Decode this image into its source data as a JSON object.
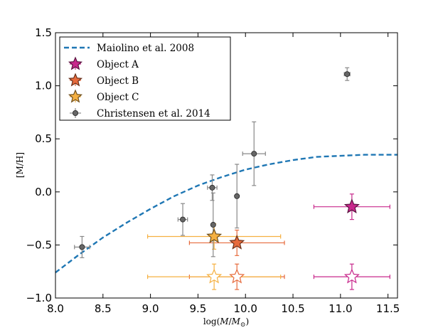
{
  "chart_data": {
    "type": "scatter",
    "xlabel": "log(M/M⊙)",
    "ylabel": "[M/H]",
    "xlim": [
      8.0,
      11.6
    ],
    "ylim": [
      -1.0,
      1.5
    ],
    "xticks": [
      "8.0",
      "8.5",
      "9.0",
      "9.5",
      "10.0",
      "10.5",
      "11.0",
      "11.5"
    ],
    "xtick_values": [
      8.0,
      8.5,
      9.0,
      9.5,
      10.0,
      10.5,
      11.0,
      11.5
    ],
    "yticks": [
      "−1.0",
      "−0.5",
      "0.0",
      "0.5",
      "1.0",
      "1.5"
    ],
    "ytick_values": [
      -1.0,
      -0.5,
      0.0,
      0.5,
      1.0,
      1.5
    ],
    "legend_position": "upper-left",
    "series": [
      {
        "name": "Maiolino et al. 2008",
        "kind": "curve",
        "color": "#1f77b4",
        "x": [
          8.0,
          8.25,
          8.5,
          8.75,
          9.0,
          9.25,
          9.5,
          9.75,
          10.0,
          10.25,
          10.5,
          10.75,
          11.0,
          11.25,
          11.5,
          11.6
        ],
        "y": [
          -0.76,
          -0.59,
          -0.43,
          -0.29,
          -0.16,
          -0.04,
          0.06,
          0.14,
          0.21,
          0.26,
          0.3,
          0.33,
          0.34,
          0.35,
          0.35,
          0.35
        ]
      },
      {
        "name": "Object A",
        "kind": "star",
        "color": "#c8288c",
        "points": [
          {
            "x": 11.12,
            "y": -0.14,
            "xerr": 0.4,
            "yerr": 0.12,
            "filled": true
          },
          {
            "x": 11.12,
            "y": -0.8,
            "xerr": 0.4,
            "yerr": 0.12,
            "filled": false
          }
        ]
      },
      {
        "name": "Object B",
        "kind": "star",
        "color": "#e66a3c",
        "points": [
          {
            "x": 9.91,
            "y": -0.48,
            "xerr": 0.5,
            "yerr": 0.12,
            "filled": true
          },
          {
            "x": 9.91,
            "y": -0.8,
            "xerr": 0.5,
            "yerr": 0.12,
            "filled": false
          }
        ]
      },
      {
        "name": "Object C",
        "kind": "star",
        "color": "#f5b041",
        "points": [
          {
            "x": 9.67,
            "y": -0.42,
            "xerr": 0.7,
            "yerr": 0.12,
            "filled": true
          },
          {
            "x": 9.67,
            "y": -0.8,
            "xerr": 0.7,
            "yerr": 0.12,
            "filled": false
          }
        ]
      },
      {
        "name": "Christensen et al. 2014",
        "kind": "circle",
        "color": "#666666",
        "points": [
          {
            "x": 8.28,
            "y": -0.52,
            "xerr": 0.08,
            "yerr": 0.1
          },
          {
            "x": 9.34,
            "y": -0.26,
            "xerr": 0.05,
            "yerr": 0.15
          },
          {
            "x": 9.65,
            "y": 0.04,
            "xerr": 0.05,
            "yerr": 0.12
          },
          {
            "x": 9.66,
            "y": -0.31,
            "xerr": 0.0,
            "yerr": 0.3
          },
          {
            "x": 9.91,
            "y": -0.04,
            "xerr": 0.0,
            "yerr": 0.3
          },
          {
            "x": 10.09,
            "y": 0.36,
            "xerr": 0.12,
            "yerr": 0.3
          },
          {
            "x": 11.07,
            "y": 1.11,
            "xerr": 0.03,
            "yerr": 0.06
          }
        ]
      }
    ]
  }
}
